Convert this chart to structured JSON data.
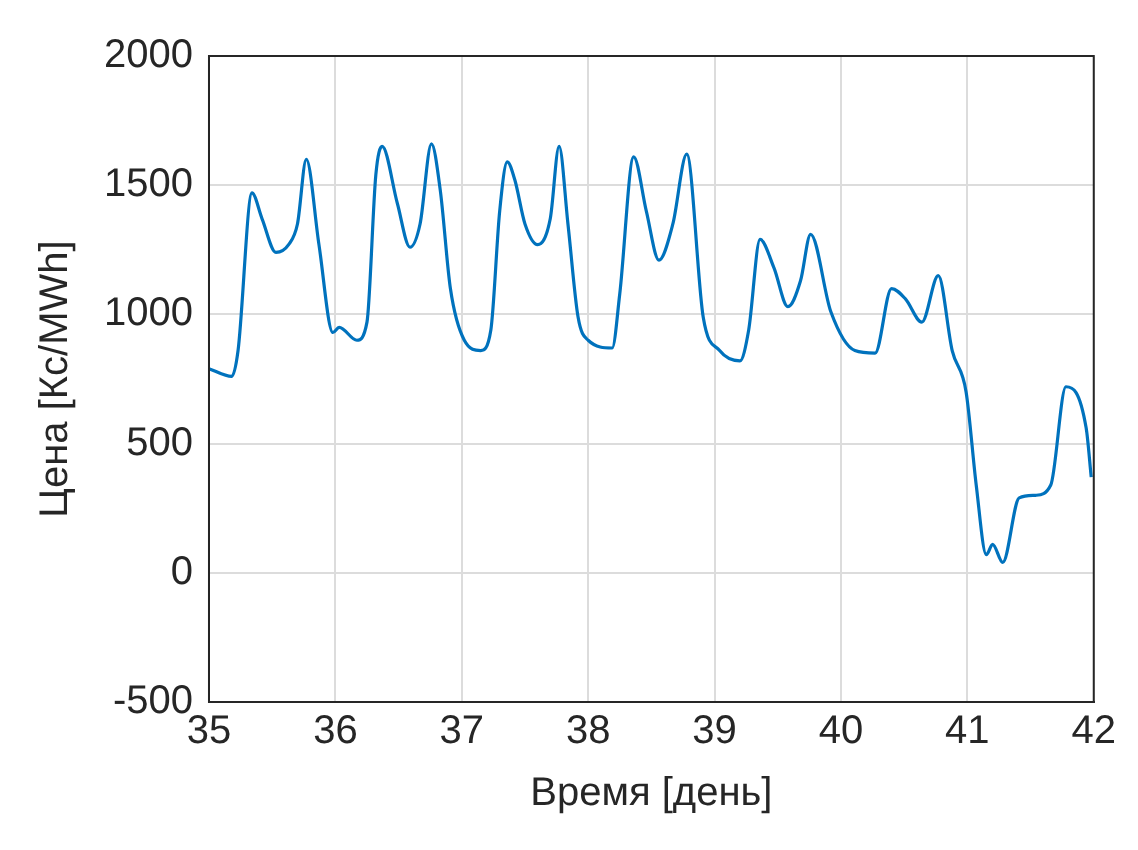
{
  "chart_data": {
    "type": "line",
    "xlabel": "Время [день]",
    "ylabel": "Цена [Кс/MWh]",
    "xlim": [
      35,
      42
    ],
    "ylim": [
      -500,
      2000
    ],
    "xticks": [
      35,
      36,
      37,
      38,
      39,
      40,
      41,
      42
    ],
    "yticks": [
      -500,
      0,
      500,
      1000,
      1500,
      2000
    ],
    "grid": true,
    "legend": false,
    "marker": "none",
    "line_style": "solid",
    "series": [
      {
        "color": "#0072bd",
        "x": [
          35.0,
          35.18,
          35.23,
          35.34,
          35.42,
          35.53,
          35.63,
          35.7,
          35.77,
          35.87,
          35.98,
          36.03,
          36.17,
          36.25,
          36.32,
          36.37,
          36.49,
          36.59,
          36.67,
          36.76,
          36.83,
          36.91,
          37.02,
          37.15,
          37.23,
          37.3,
          37.36,
          37.42,
          37.5,
          37.6,
          37.7,
          37.77,
          37.84,
          37.92,
          38.0,
          38.19,
          38.25,
          38.36,
          38.46,
          38.56,
          38.67,
          38.78,
          38.91,
          39.04,
          39.2,
          39.27,
          39.36,
          39.47,
          39.58,
          39.68,
          39.76,
          39.92,
          40.11,
          40.27,
          40.4,
          40.51,
          40.64,
          40.77,
          40.88,
          40.99,
          41.07,
          41.15,
          41.2,
          41.28,
          41.41,
          41.54,
          41.66,
          41.78,
          41.94,
          41.98
        ],
        "values": [
          790,
          760,
          860,
          1470,
          1370,
          1240,
          1270,
          1350,
          1600,
          1270,
          930,
          950,
          900,
          970,
          1540,
          1650,
          1430,
          1260,
          1350,
          1660,
          1480,
          1100,
          900,
          860,
          940,
          1400,
          1590,
          1520,
          1350,
          1270,
          1370,
          1650,
          1350,
          990,
          900,
          870,
          1080,
          1610,
          1400,
          1210,
          1350,
          1620,
          990,
          860,
          820,
          940,
          1290,
          1180,
          1030,
          1130,
          1310,
          1010,
          860,
          850,
          1100,
          1060,
          970,
          1150,
          860,
          700,
          340,
          70,
          110,
          40,
          290,
          300,
          340,
          720,
          560,
          370
        ]
      }
    ]
  }
}
